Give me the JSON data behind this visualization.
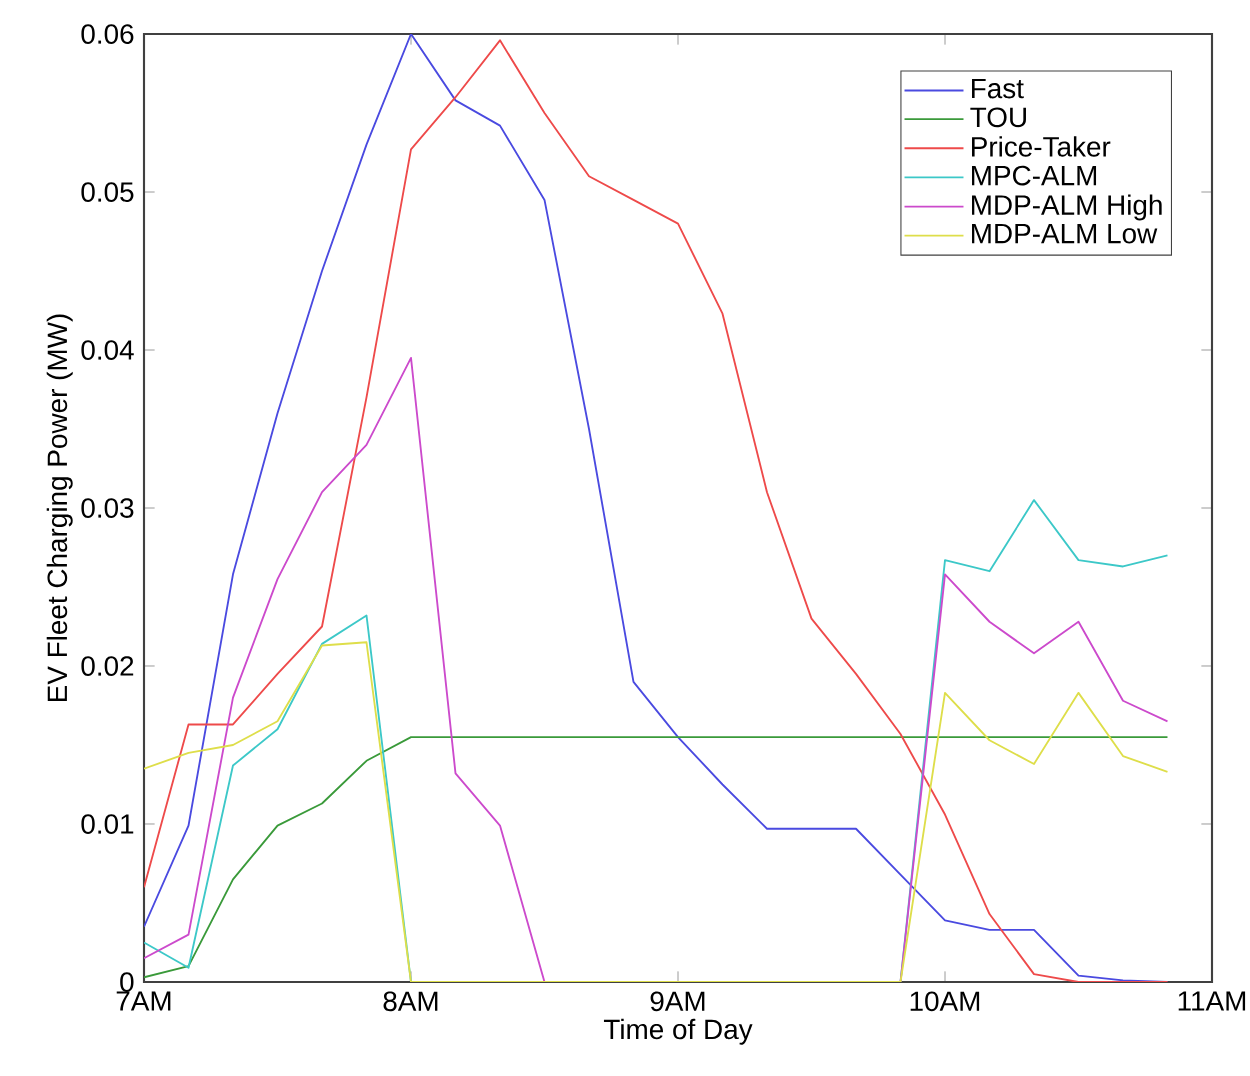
{
  "chart_data": {
    "type": "line",
    "xlabel": "Time of Day",
    "ylabel": "EV Fleet Charging Power (MW)",
    "x": [
      7,
      7.1667,
      7.3333,
      7.5,
      7.6667,
      7.8333,
      8,
      8.1667,
      8.3333,
      8.5,
      8.6667,
      8.8333,
      9,
      9.1667,
      9.3333,
      9.5,
      9.6667,
      9.8333,
      10,
      10.1667,
      10.3333,
      10.5,
      10.6667,
      10.8333
    ],
    "series": [
      {
        "name": "Fast",
        "color": "#4a4ae0",
        "values": [
          0.0035,
          0.0099,
          0.0258,
          0.036,
          0.045,
          0.053,
          0.06,
          0.0558,
          0.0542,
          0.0495,
          0.035,
          0.019,
          0.0155,
          0.0125,
          0.0097,
          0.0097,
          0.0097,
          0.0068,
          0.0039,
          0.0033,
          0.0033,
          0.0004,
          0.0001,
          0
        ]
      },
      {
        "name": "TOU",
        "color": "#3a9a3a",
        "values": [
          0.0003,
          0.001,
          0.0065,
          0.0099,
          0.0113,
          0.014,
          0.0155,
          0.0155,
          0.0155,
          0.0155,
          0.0155,
          0.0155,
          0.0155,
          0.0155,
          0.0155,
          0.0155,
          0.0155,
          0.0155,
          0.0155,
          0.0155,
          0.0155,
          0.0155,
          0.0155,
          0.0155
        ]
      },
      {
        "name": "Price-Taker",
        "color": "#ee4a4a",
        "values": [
          0.006,
          0.0163,
          0.0163,
          0.0195,
          0.0225,
          0.037,
          0.0527,
          0.056,
          0.0596,
          0.055,
          0.051,
          0.0495,
          0.048,
          0.0423,
          0.031,
          0.023,
          0.0195,
          0.0157,
          0.0106,
          0.0043,
          0.0005,
          0,
          0,
          0
        ]
      },
      {
        "name": "MPC-ALM",
        "color": "#3cc8c8",
        "values": [
          0.0025,
          0.0009,
          0.0137,
          0.016,
          0.0214,
          0.0232,
          0,
          0,
          0,
          0,
          0,
          0,
          0,
          0,
          0,
          0,
          0,
          0,
          0.0267,
          0.026,
          0.0305,
          0.0267,
          0.0263,
          0.027
        ]
      },
      {
        "name": "MDP-ALM High",
        "color": "#cc4acc",
        "values": [
          0.0015,
          0.003,
          0.018,
          0.0255,
          0.031,
          0.034,
          0.0395,
          0.0132,
          0.0099,
          0,
          0,
          0,
          0,
          0,
          0,
          0,
          0,
          0,
          0.0258,
          0.0228,
          0.0208,
          0.0228,
          0.0178,
          0.0165
        ]
      },
      {
        "name": "MDP-ALM Low",
        "color": "#dede4a",
        "values": [
          0.0135,
          0.0145,
          0.015,
          0.0165,
          0.0213,
          0.0215,
          0,
          0,
          0,
          0,
          0,
          0,
          0,
          0,
          0,
          0,
          0,
          0,
          0.0183,
          0.0153,
          0.0138,
          0.0183,
          0.0143,
          0.0133
        ]
      }
    ],
    "xlim": [
      7,
      11
    ],
    "ylim": [
      0,
      0.06
    ],
    "xticks": [
      {
        "value": 7,
        "label": "7AM"
      },
      {
        "value": 8,
        "label": "8AM"
      },
      {
        "value": 9,
        "label": "9AM"
      },
      {
        "value": 10,
        "label": "10AM"
      },
      {
        "value": 11,
        "label": "11AM"
      }
    ],
    "yticks": [
      0,
      0.01,
      0.02,
      0.03,
      0.04,
      0.05,
      0.06
    ],
    "legend": "top right",
    "grid": false,
    "marker": "none",
    "line_style": "solid"
  }
}
